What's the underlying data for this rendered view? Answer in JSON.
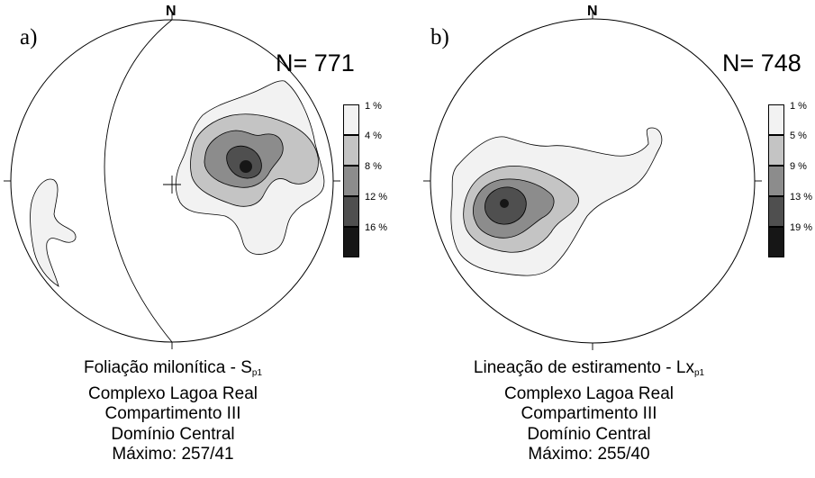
{
  "north_label": "N",
  "panels": [
    {
      "id": "a",
      "letter": "a)",
      "count": "N= 771",
      "legend": [
        "1 %",
        "4 %",
        "8 %",
        "12 %",
        "16 %"
      ],
      "caption": {
        "line1_main": "Foliação milonítica - S",
        "line1_sub": "p1",
        "line2": "Complexo Lagoa Real",
        "line3": "Compartimento III",
        "line4": "Domínio Central",
        "line5": "Máximo: 257/41"
      }
    },
    {
      "id": "b",
      "letter": "b)",
      "count": "N= 748",
      "legend": [
        "1 %",
        "5 %",
        "9 %",
        "13 %",
        "19 %"
      ],
      "caption": {
        "line1_main": "Lineação de estiramento - Lx",
        "line1_sub": "p1",
        "line2": "Complexo Lagoa Real",
        "line3": "Compartimento III",
        "line4": "Domínio Central",
        "line5": "Máximo: 255/40"
      }
    }
  ],
  "legend_colors": [
    "#f2f2f2",
    "#c4c4c4",
    "#8c8c8c",
    "#4f4f4f",
    "#161616"
  ]
}
